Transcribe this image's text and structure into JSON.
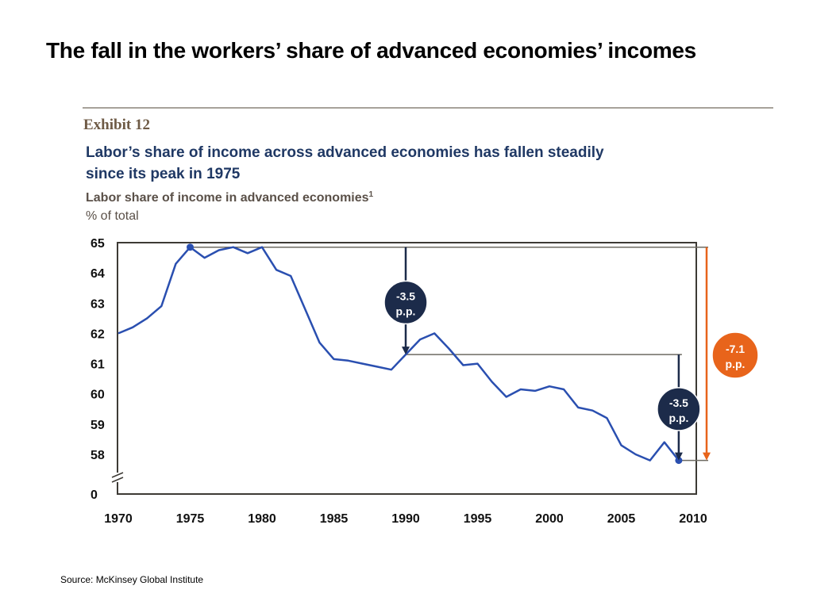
{
  "slide": {
    "title": "The fall in the workers’ share of advanced economies’ incomes",
    "source": "Source: McKinsey Global Institute"
  },
  "colors": {
    "line": "#2a4fb0",
    "navy_badge": "#1c2b4a",
    "orange": "#e8641b",
    "frame": "#3d3a35",
    "reference": "#6d6a62"
  },
  "chart_data": {
    "type": "line",
    "exhibit": "Exhibit 12",
    "title": "Labor’s share of income across advanced economies has fallen steadily since its peak in 1975",
    "title_lines": [
      "Labor’s share of income across advanced economies has fallen steadily",
      "since its peak in 1975"
    ],
    "subtitle": "Labor share of income in advanced economies",
    "subtitle_footnote": "1",
    "units": "% of total",
    "x_ticks": [
      "1970",
      "1975",
      "1980",
      "1985",
      "1990",
      "1995",
      "2000",
      "2005",
      "2010"
    ],
    "y_ticks": [
      "65",
      "64",
      "63",
      "62",
      "61",
      "60",
      "59",
      "58",
      "0"
    ],
    "y_range": [
      57.6,
      65
    ],
    "y_axis_break": true,
    "x_range": [
      1970,
      2010
    ],
    "grid": false,
    "series": [
      {
        "x": [
          1970,
          1971,
          1972,
          1973,
          1974,
          1975,
          1976,
          1977,
          1978,
          1979,
          1980,
          1981,
          1982,
          1983,
          1984,
          1985,
          1986,
          1987,
          1988,
          1989,
          1990,
          1991,
          1992,
          1993,
          1994,
          1995,
          1996,
          1997,
          1998,
          1999,
          2000,
          2001,
          2002,
          2003,
          2004,
          2005,
          2006,
          2007,
          2008,
          2009
        ],
        "y": [
          62.0,
          62.2,
          62.5,
          62.9,
          64.3,
          64.85,
          64.5,
          64.75,
          64.85,
          64.65,
          64.85,
          64.1,
          63.9,
          62.8,
          61.7,
          61.15,
          61.1,
          61.0,
          60.9,
          60.8,
          61.3,
          61.8,
          62.0,
          61.5,
          60.95,
          61.0,
          60.4,
          59.9,
          60.15,
          60.1,
          60.25,
          60.15,
          59.55,
          59.45,
          59.2,
          58.3,
          58.0,
          57.8,
          58.4,
          57.8
        ]
      }
    ],
    "highlight_points": [
      {
        "x": 1975,
        "y": 64.85
      },
      {
        "x": 2009,
        "y": 57.8
      }
    ],
    "reference_levels": [
      64.85,
      61.3,
      57.8
    ],
    "annotations": [
      {
        "text_lines": [
          "-3.5",
          "p.p."
        ],
        "from": 64.85,
        "to": 61.3,
        "x": 1990,
        "color": "navy"
      },
      {
        "text_lines": [
          "-3.5",
          "p.p."
        ],
        "from": 61.3,
        "to": 57.8,
        "x": 2009,
        "color": "navy"
      },
      {
        "text_lines": [
          "-7.1",
          "p.p."
        ],
        "from": 64.85,
        "to": 57.8,
        "x": 2010.5,
        "color": "orange"
      }
    ]
  }
}
